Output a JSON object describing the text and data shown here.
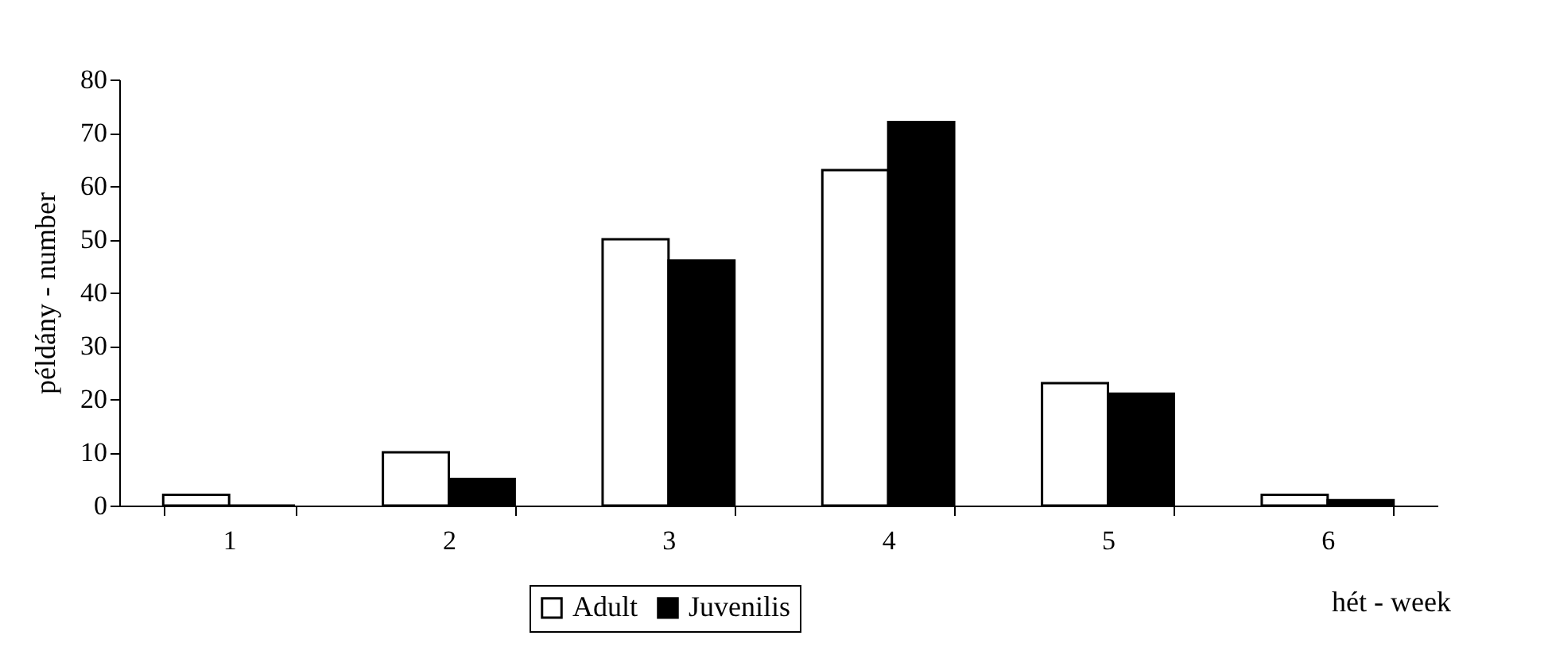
{
  "chart_data": {
    "type": "bar",
    "xlabel": "hét - week",
    "ylabel": "példány - number",
    "categories": [
      "1",
      "2",
      "3",
      "4",
      "5",
      "6"
    ],
    "series": [
      {
        "name": "Adult",
        "color": "#ffffff",
        "values": [
          2,
          10,
          50,
          63,
          23,
          2
        ]
      },
      {
        "name": "Juvenilis",
        "color": "#000000",
        "values": [
          0,
          5,
          46,
          72,
          21,
          1
        ]
      }
    ],
    "ylim": [
      0,
      80
    ],
    "yticks": [
      0,
      10,
      20,
      30,
      40,
      50,
      60,
      70,
      80
    ],
    "grid": false,
    "legend": "bottom"
  }
}
